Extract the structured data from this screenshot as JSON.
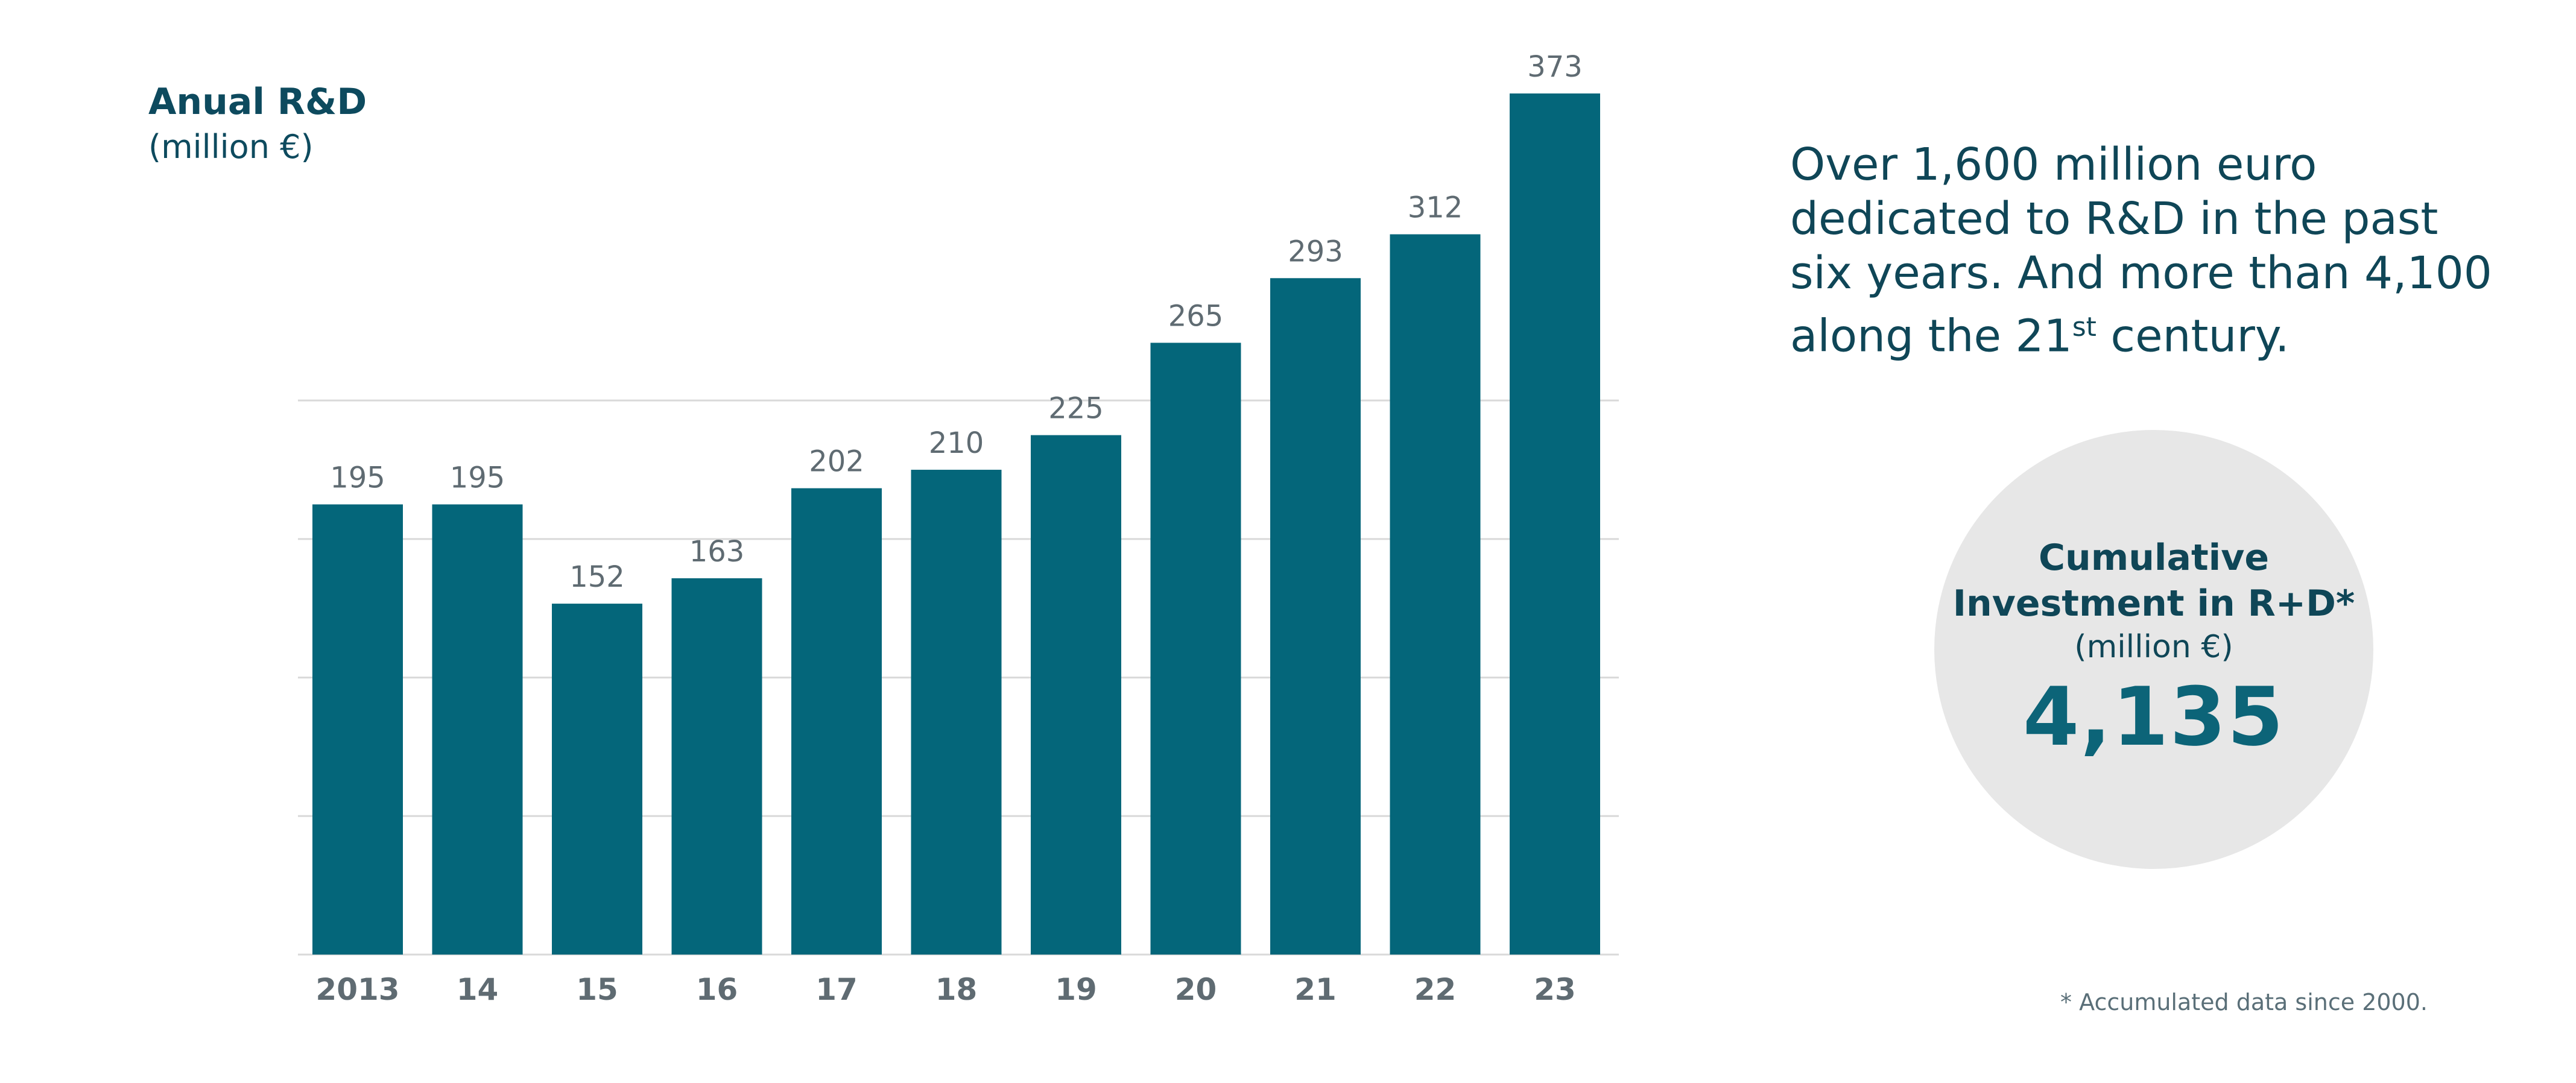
{
  "chart_data": {
    "type": "bar",
    "title": "Anual R&D",
    "subtitle": "(million €)",
    "categories": [
      "2013",
      "14",
      "15",
      "16",
      "17",
      "18",
      "19",
      "20",
      "21",
      "22",
      "23"
    ],
    "values": [
      195,
      195,
      152,
      163,
      202,
      210,
      225,
      265,
      293,
      312,
      373
    ],
    "ylim": [
      0,
      373
    ],
    "grid": true,
    "bar_color": "#04667a",
    "data_labels": true
  },
  "headline": {
    "line1": "Over 1,600  million euro",
    "line2": "dedicated to R&D in the past",
    "line3": "six years.  And more than 4,100",
    "line4_pre": "along the 21",
    "line4_sup": "st",
    "line4_post": " century."
  },
  "cumulative": {
    "line1": "Cumulative",
    "line2": "Investment in R+D*",
    "unit": "(million €)",
    "total": "4,135"
  },
  "footnote": "* Accumulated data since 2000.",
  "colors": {
    "accent": "#04667a",
    "text": "#0f4657",
    "circle": "#e7e7e7",
    "grid": "#d9d9d9"
  }
}
